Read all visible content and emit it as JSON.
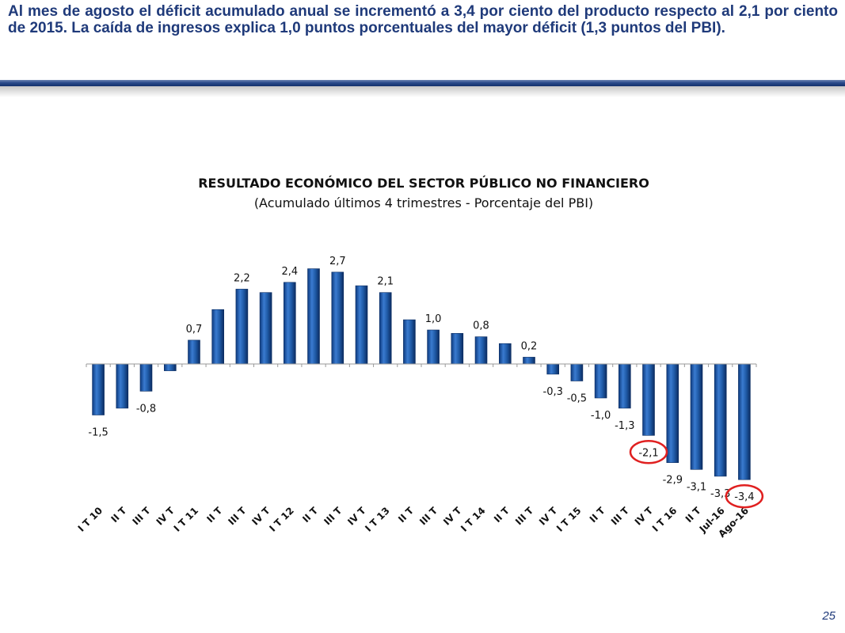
{
  "slide": {
    "headline": "Al mes de agosto el déficit acumulado anual se incrementó a 3,4 por ciento del producto respecto al 2,1 por ciento de 2015. La caída de ingresos explica 1,0 puntos porcentuales del mayor déficit (1,3 puntos del PBI).",
    "page_number": "25"
  },
  "colors": {
    "bar": "#1f5aa6",
    "bar_edge": "#0c2d62",
    "highlight_circle": "#e02020",
    "headline": "#1f3a7a"
  },
  "chart_data": {
    "type": "bar",
    "title": "RESULTADO ECONÓMICO DEL SECTOR PÚBLICO NO FINANCIERO",
    "subtitle": "(Acumulado últimos 4 trimestres - Porcentaje del PBI)",
    "categories": [
      "I T 10",
      "II T",
      "III T",
      "IV T",
      "I T 11",
      "II T",
      "III T",
      "IV T",
      "I T 12",
      "II T",
      "III T",
      "IV T",
      "I T 13",
      "II T",
      "III T",
      "IV T",
      "I T 14",
      "II T",
      "III T",
      "IV T",
      "I T 15",
      "II T",
      "III T",
      "IV T",
      "I T 16",
      "II T",
      "Jul-16",
      "Ago-16"
    ],
    "values": [
      -1.5,
      -1.3,
      -0.8,
      -0.2,
      0.7,
      1.6,
      2.2,
      2.1,
      2.4,
      2.8,
      2.7,
      2.3,
      2.1,
      1.3,
      1.0,
      0.9,
      0.8,
      0.6,
      0.2,
      -0.3,
      -0.5,
      -1.0,
      -1.3,
      -2.1,
      -2.9,
      -3.1,
      -3.3,
      -3.4
    ],
    "data_labels": [
      {
        "index": 0,
        "text": "-1,5"
      },
      {
        "index": 2,
        "text": "-0,8"
      },
      {
        "index": 4,
        "text": "0,7"
      },
      {
        "index": 6,
        "text": "2,2"
      },
      {
        "index": 8,
        "text": "2,4"
      },
      {
        "index": 10,
        "text": "2,7"
      },
      {
        "index": 12,
        "text": "2,1"
      },
      {
        "index": 14,
        "text": "1,0"
      },
      {
        "index": 16,
        "text": "0,8"
      },
      {
        "index": 18,
        "text": "0,2"
      },
      {
        "index": 19,
        "text": "-0,3"
      },
      {
        "index": 20,
        "text": "-0,5"
      },
      {
        "index": 21,
        "text": "-1,0"
      },
      {
        "index": 22,
        "text": "-1,3"
      },
      {
        "index": 23,
        "text": "-2,1"
      },
      {
        "index": 24,
        "text": "-2,9"
      },
      {
        "index": 25,
        "text": "-3,1"
      },
      {
        "index": 26,
        "text": "-3,3"
      },
      {
        "index": 27,
        "text": "-3,4"
      }
    ],
    "highlighted_indices": [
      23,
      27
    ],
    "ylim": [
      -3.8,
      3.2
    ],
    "grid": false,
    "legend": "none"
  }
}
